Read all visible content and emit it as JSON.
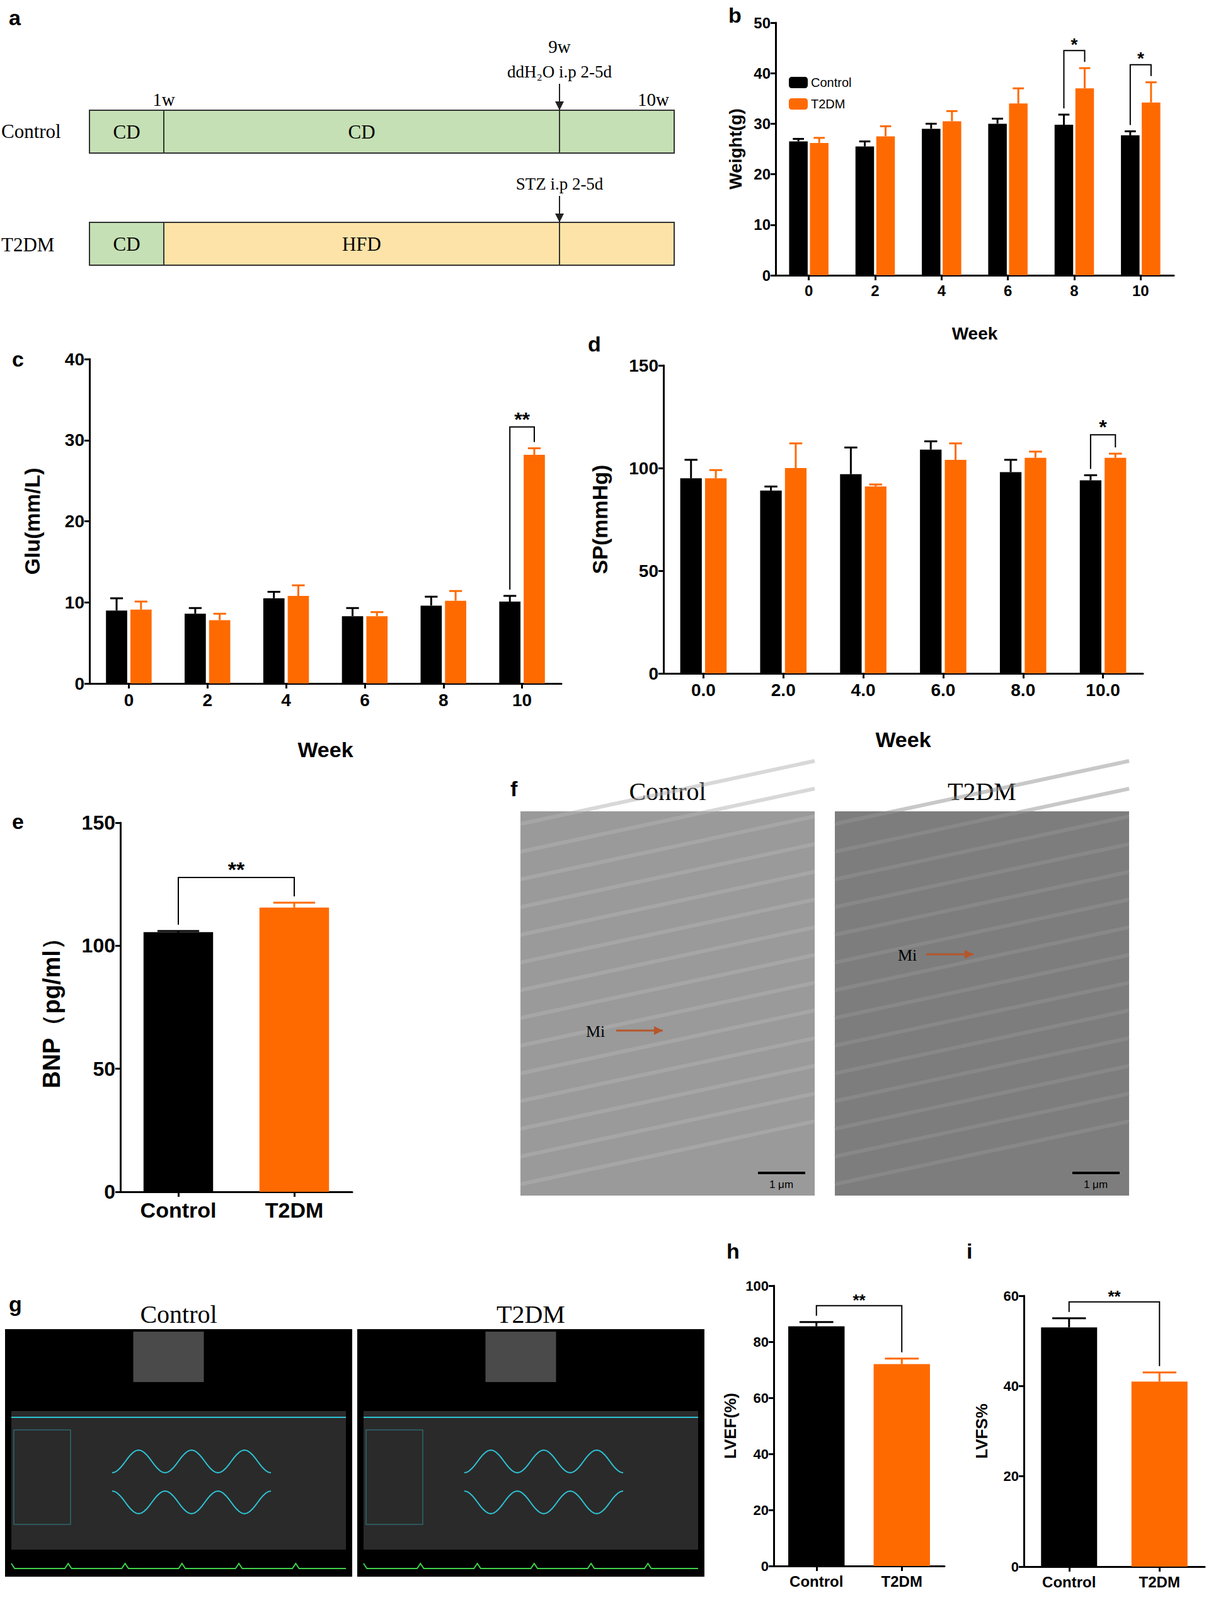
{
  "chart_data": [
    {
      "type": "bar",
      "title": "b",
      "categories": [
        "0",
        "2",
        "4",
        "6",
        "8",
        "10"
      ],
      "x_label": "Week",
      "y_label": "Weight(g)",
      "ylim": [
        0,
        50
      ],
      "yticks": [
        0,
        10,
        20,
        30,
        40,
        50
      ],
      "grid": false,
      "legend": "upper left",
      "series": [
        {
          "name": "Control",
          "color": "#000000",
          "values": [
            26.5,
            25.5,
            29,
            30,
            29.8,
            27.7
          ],
          "errors": [
            0.5,
            1,
            1,
            1,
            2,
            0.8
          ]
        },
        {
          "name": "T2DM",
          "color": "#ff6a00",
          "values": [
            26.2,
            27.5,
            30.5,
            34,
            37,
            34.2
          ],
          "errors": [
            1,
            2,
            2,
            3,
            4,
            4
          ]
        }
      ],
      "annotations": [
        {
          "text": "*",
          "category": "8"
        },
        {
          "text": "*",
          "category": "10"
        }
      ]
    },
    {
      "type": "bar",
      "title": "c",
      "categories": [
        "0",
        "2",
        "4",
        "6",
        "8",
        "10"
      ],
      "x_label": "Week",
      "y_label": "Glu(mm/L)",
      "ylim": [
        0,
        40
      ],
      "yticks": [
        0,
        10,
        20,
        30,
        40
      ],
      "grid": false,
      "series": [
        {
          "name": "Control",
          "color": "#000000",
          "values": [
            9,
            8.6,
            10.5,
            8.3,
            9.6,
            10.1
          ],
          "errors": [
            1.5,
            0.7,
            0.8,
            1,
            1.1,
            0.7
          ]
        },
        {
          "name": "T2DM",
          "color": "#ff6a00",
          "values": [
            9.1,
            7.8,
            10.8,
            8.3,
            10.2,
            28.2
          ],
          "errors": [
            1,
            0.8,
            1.3,
            0.5,
            1.2,
            0.8
          ]
        }
      ],
      "annotations": [
        {
          "text": "**",
          "category": "10"
        }
      ]
    },
    {
      "type": "bar",
      "title": "d",
      "categories": [
        "0.0",
        "2.0",
        "4.0",
        "6.0",
        "8.0",
        "10.0"
      ],
      "x_label": "Week",
      "y_label": "SP(mmHg)",
      "ylim": [
        0,
        150
      ],
      "yticks": [
        0,
        50,
        100,
        150
      ],
      "grid": false,
      "series": [
        {
          "name": "Control",
          "color": "#000000",
          "values": [
            95,
            89,
            97,
            109,
            98,
            94
          ],
          "errors": [
            9,
            2,
            13,
            4,
            6,
            2.5
          ]
        },
        {
          "name": "T2DM",
          "color": "#ff6a00",
          "values": [
            95,
            100,
            91,
            104,
            105,
            105
          ],
          "errors": [
            4,
            12,
            1,
            8,
            3,
            2
          ]
        }
      ],
      "annotations": [
        {
          "text": "*",
          "category": "10.0"
        }
      ]
    },
    {
      "type": "bar",
      "title": "e",
      "categories": [
        "Control",
        "T2DM"
      ],
      "values": [
        105.5,
        115.5
      ],
      "errors": [
        0.5,
        2
      ],
      "colors": [
        "#000000",
        "#ff6a00"
      ],
      "y_label": "BNP（pg/ml）",
      "ylim": [
        0,
        150
      ],
      "yticks": [
        0,
        50,
        100,
        150
      ],
      "grid": false,
      "annotations": [
        {
          "text": "**",
          "categories": [
            "Control",
            "T2DM"
          ]
        }
      ]
    },
    {
      "type": "bar",
      "title": "h",
      "categories": [
        "Control",
        "T2DM"
      ],
      "values": [
        85.5,
        72
      ],
      "errors": [
        1.5,
        2
      ],
      "colors": [
        "#000000",
        "#ff6a00"
      ],
      "y_label": "LVEF(%)",
      "ylim": [
        0,
        100
      ],
      "yticks": [
        0,
        20,
        40,
        60,
        80,
        100
      ],
      "grid": false,
      "annotations": [
        {
          "text": "**",
          "categories": [
            "Control",
            "T2DM"
          ]
        }
      ]
    },
    {
      "type": "bar",
      "title": "i",
      "categories": [
        "Control",
        "T2DM"
      ],
      "values": [
        53,
        41
      ],
      "errors": [
        2,
        2
      ],
      "colors": [
        "#000000",
        "#ff6a00"
      ],
      "y_label": "LVFS%",
      "ylim": [
        0,
        60
      ],
      "yticks": [
        0,
        20,
        40,
        60
      ],
      "grid": false,
      "annotations": [
        {
          "text": "**",
          "categories": [
            "Control",
            "T2DM"
          ]
        }
      ]
    }
  ],
  "diagram": {
    "panel": "a",
    "timepoints": [
      "1w",
      "9w",
      "10w"
    ],
    "rows": [
      {
        "label": "Control",
        "injection": "ddH₂O i.p 2-5d",
        "segments": [
          {
            "text": "CD",
            "color": "#c5e0b4"
          },
          {
            "text": "CD",
            "color": "#c5e0b4"
          }
        ]
      },
      {
        "label": "T2DM",
        "injection": "STZ i.p 2-5d",
        "segments": [
          {
            "text": "CD",
            "color": "#c5e0b4"
          },
          {
            "text": "HFD",
            "color": "#fde3a7"
          }
        ]
      }
    ]
  },
  "images": [
    {
      "panel": "f",
      "labels": [
        "Control",
        "T2DM"
      ],
      "marker": "Mi",
      "scale_bar": "1 μm"
    },
    {
      "panel": "g",
      "labels": [
        "Control",
        "T2DM"
      ]
    }
  ]
}
